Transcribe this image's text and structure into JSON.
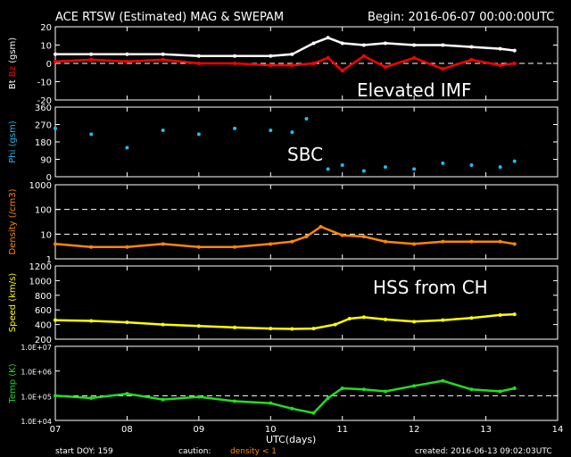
{
  "header": {
    "title": "ACE RTSW (Estimated) MAG & SWEPAM",
    "begin": "Begin: 2016-06-07 00:00:00UTC"
  },
  "annotations": {
    "imf": "Elevated IMF",
    "sbc": "SBC",
    "hss": "HSS from CH"
  },
  "footer": {
    "start_doy": "start DOY: 159",
    "caution": "caution:",
    "density_note": "density < 1",
    "created": "created: 2016-06-13 09:02:03UTC",
    "xlabel": "UTC(days)"
  },
  "colors": {
    "bt": "#ffffff",
    "bz": "#ff0000",
    "phi": "#22bbee",
    "density": "#ff8800",
    "speed": "#ffff00",
    "temp": "#22dd22",
    "frame": "#ffffff",
    "background": "#000000"
  },
  "chart_data": [
    {
      "type": "line",
      "panel": "mag",
      "ylabel_parts": [
        "Bt",
        "Bz",
        "(gsm)"
      ],
      "yticks": [
        20,
        10,
        0,
        -10,
        -20
      ],
      "ylim": [
        -20,
        20
      ],
      "xlim": [
        7,
        14
      ],
      "series": [
        {
          "name": "Bt",
          "color": "#ffffff",
          "x": [
            7.0,
            7.5,
            8.0,
            8.5,
            9.0,
            9.5,
            10.0,
            10.3,
            10.6,
            10.8,
            11.0,
            11.3,
            11.6,
            12.0,
            12.4,
            12.8,
            13.2,
            13.4
          ],
          "values": [
            5,
            5,
            5,
            5,
            4,
            4,
            4,
            5,
            11,
            14,
            11,
            10,
            11,
            10,
            10,
            9,
            8,
            7
          ]
        },
        {
          "name": "Bz",
          "color": "#ff0000",
          "x": [
            7.0,
            7.5,
            8.0,
            8.5,
            9.0,
            9.5,
            10.0,
            10.3,
            10.6,
            10.8,
            11.0,
            11.3,
            11.6,
            12.0,
            12.4,
            12.8,
            13.2,
            13.4
          ],
          "values": [
            1,
            2,
            1,
            2,
            0,
            0,
            -1,
            -1,
            0,
            3,
            -4,
            4,
            -2,
            3,
            -3,
            2,
            -1,
            0
          ]
        }
      ]
    },
    {
      "type": "scatter",
      "panel": "phi",
      "ylabel": "Phi (gsm)",
      "yticks": [
        360,
        270,
        180,
        90,
        0
      ],
      "ylim": [
        0,
        360
      ],
      "xlim": [
        7,
        14
      ],
      "series": [
        {
          "name": "Phi",
          "color": "#22bbee",
          "x": [
            7.0,
            7.5,
            8.0,
            8.5,
            9.0,
            9.5,
            10.0,
            10.3,
            10.5,
            10.8,
            11.0,
            11.3,
            11.6,
            12.0,
            12.4,
            12.8,
            13.2,
            13.4
          ],
          "values": [
            250,
            220,
            150,
            240,
            220,
            250,
            240,
            230,
            300,
            40,
            60,
            30,
            50,
            40,
            70,
            60,
            50,
            80
          ]
        }
      ]
    },
    {
      "type": "line",
      "panel": "density",
      "ylabel": "Density (/cm3)",
      "yscale": "log",
      "yticks": [
        1000,
        100,
        10,
        1
      ],
      "ytick_labels": [
        "1000",
        "100",
        "10",
        "1"
      ],
      "ylim": [
        1,
        1000
      ],
      "xlim": [
        7,
        14
      ],
      "series": [
        {
          "name": "Density",
          "color": "#ff8800",
          "x": [
            7.0,
            7.5,
            8.0,
            8.5,
            9.0,
            9.5,
            10.0,
            10.3,
            10.5,
            10.7,
            11.0,
            11.3,
            11.6,
            12.0,
            12.4,
            12.8,
            13.2,
            13.4
          ],
          "values": [
            4,
            3,
            3,
            4,
            3,
            3,
            4,
            5,
            8,
            20,
            9,
            8,
            5,
            4,
            5,
            5,
            5,
            4
          ]
        }
      ]
    },
    {
      "type": "line",
      "panel": "speed",
      "ylabel": "Speed (km/s)",
      "yticks": [
        1200,
        1000,
        800,
        600,
        400,
        200
      ],
      "ylim": [
        200,
        1200
      ],
      "xlim": [
        7,
        14
      ],
      "series": [
        {
          "name": "Speed",
          "color": "#ffff00",
          "x": [
            7.0,
            7.5,
            8.0,
            8.5,
            9.0,
            9.5,
            10.0,
            10.3,
            10.6,
            10.9,
            11.1,
            11.3,
            11.6,
            12.0,
            12.4,
            12.8,
            13.2,
            13.4
          ],
          "values": [
            460,
            450,
            430,
            400,
            380,
            360,
            345,
            340,
            345,
            400,
            480,
            500,
            470,
            440,
            460,
            490,
            530,
            540
          ]
        }
      ]
    },
    {
      "type": "line",
      "panel": "temp",
      "ylabel": "Temp (K)",
      "yscale": "log",
      "yticks": [
        10000000,
        1000000,
        100000,
        10000
      ],
      "ytick_labels": [
        "1.0E+07",
        "1.0E+06",
        "1.0E+05",
        "1.0E+04"
      ],
      "ylim": [
        10000,
        10000000
      ],
      "xlim": [
        7,
        14
      ],
      "series": [
        {
          "name": "Temp",
          "color": "#22dd22",
          "x": [
            7.0,
            7.5,
            8.0,
            8.5,
            9.0,
            9.5,
            10.0,
            10.3,
            10.6,
            10.8,
            11.0,
            11.3,
            11.6,
            12.0,
            12.4,
            12.8,
            13.2,
            13.4
          ],
          "values": [
            100000,
            80000,
            120000,
            70000,
            90000,
            60000,
            50000,
            30000,
            20000,
            80000,
            200000,
            180000,
            150000,
            250000,
            400000,
            180000,
            150000,
            200000
          ]
        }
      ]
    }
  ],
  "xaxis": {
    "ticks": [
      7,
      8,
      9,
      10,
      11,
      12,
      13,
      14
    ],
    "tick_labels": [
      "07",
      "08",
      "09",
      "10",
      "11",
      "12",
      "13",
      "14"
    ]
  }
}
